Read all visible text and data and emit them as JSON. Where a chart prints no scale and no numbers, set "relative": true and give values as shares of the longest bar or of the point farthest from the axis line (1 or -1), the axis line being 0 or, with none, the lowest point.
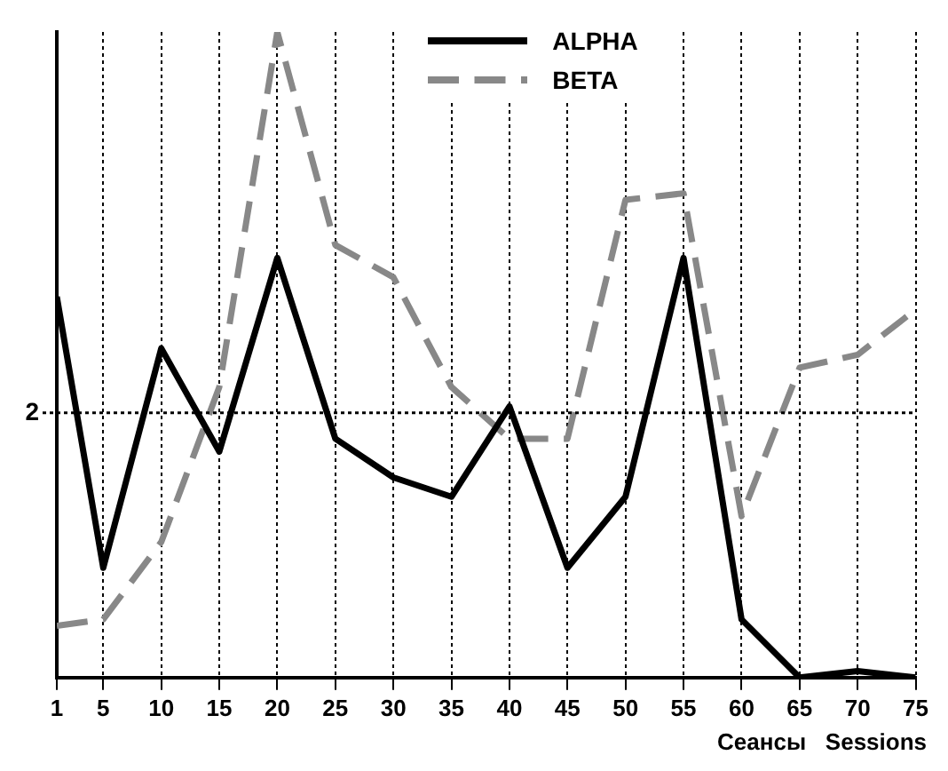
{
  "chart_data": {
    "type": "line",
    "relative": true,
    "xlabel": "Сеансы   Sessions",
    "x": [
      1,
      5,
      10,
      15,
      20,
      25,
      30,
      35,
      40,
      45,
      50,
      55,
      60,
      65,
      70,
      75
    ],
    "xlim": [
      1,
      75
    ],
    "xticks": [
      1,
      5,
      10,
      15,
      20,
      25,
      30,
      35,
      40,
      45,
      50,
      55,
      60,
      65,
      70,
      75
    ],
    "grid": "x",
    "legend": "top",
    "marker": "none",
    "ref_lines": [
      {
        "axis": "y",
        "value": 0.41,
        "line_style": "dotted"
      }
    ],
    "annotations": [
      "2"
    ],
    "series": [
      {
        "name": "ALPHA",
        "color": "#000000",
        "line_style": "solid",
        "values": [
          0.59,
          0.17,
          0.51,
          0.35,
          0.65,
          0.37,
          0.31,
          0.28,
          0.42,
          0.17,
          0.28,
          0.65,
          0.09,
          0.0,
          0.01,
          0.0
        ]
      },
      {
        "name": "BETA",
        "color": "#888888",
        "line_style": "dashed",
        "values": [
          0.08,
          0.09,
          0.21,
          0.45,
          1.0,
          0.67,
          0.62,
          0.45,
          0.37,
          0.37,
          0.74,
          0.75,
          0.25,
          0.48,
          0.5,
          0.57
        ]
      }
    ]
  }
}
